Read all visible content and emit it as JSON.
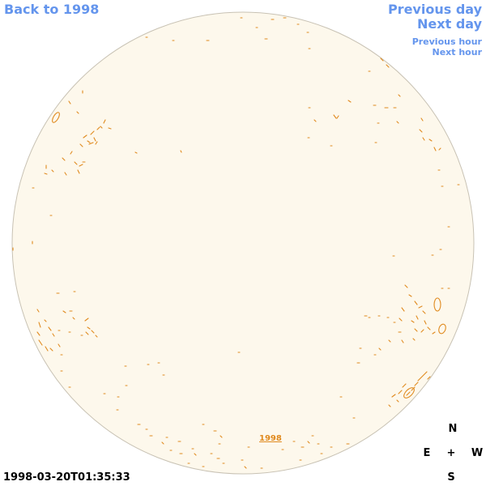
{
  "nav": {
    "back_label": "Back to 1998",
    "prev_day_label": "Previous day",
    "next_day_label": "Next day",
    "prev_hour_label": "Previous hour",
    "next_hour_label": "Next hour"
  },
  "disk": {
    "fill_color": "#fdf8ec",
    "rim_color": "#c8c2b4",
    "contour_color": "#e08a1e",
    "year_link_label": "1998"
  },
  "compass": {
    "north": "N",
    "south": "S",
    "east": "E",
    "west": "W",
    "center": "+"
  },
  "timestamp": "1998-03-20T01:35:33",
  "colors": {
    "link": "#6495ed",
    "text": "#000000"
  }
}
